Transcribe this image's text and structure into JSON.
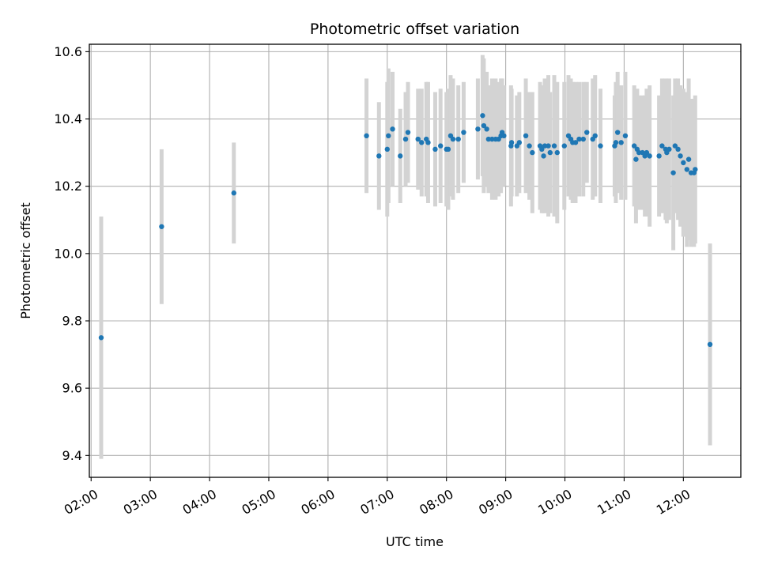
{
  "chart_data": {
    "type": "scatter",
    "title": "Photometric offset variation",
    "xlabel": "UTC time",
    "ylabel": "Photometric offset",
    "x_unit": "hours UTC",
    "xlim": [
      1.97,
      12.97
    ],
    "ylim": [
      9.335,
      10.622
    ],
    "x_ticks": [
      2,
      3,
      4,
      5,
      6,
      7,
      8,
      9,
      10,
      11,
      12
    ],
    "x_tick_labels": [
      "02:00",
      "03:00",
      "04:00",
      "05:00",
      "06:00",
      "07:00",
      "08:00",
      "09:00",
      "10:00",
      "11:00",
      "12:00"
    ],
    "y_ticks": [
      9.4,
      9.6,
      9.8,
      10.0,
      10.2,
      10.4,
      10.6
    ],
    "y_tick_labels": [
      "9.4",
      "9.6",
      "9.8",
      "10.0",
      "10.2",
      "10.4",
      "10.6"
    ],
    "grid": true,
    "point_color": "#1f77b4",
    "errorbar_color": "#d3d3d3",
    "series": [
      {
        "x": [
          2.17,
          3.19,
          4.41,
          6.65,
          6.86,
          7.0,
          7.02,
          7.09,
          7.22,
          7.31,
          7.35,
          7.52,
          7.58,
          7.66,
          7.69,
          7.81,
          7.9,
          8.0,
          8.03,
          8.07,
          8.11,
          8.2,
          8.29,
          8.53,
          8.61,
          8.63,
          8.68,
          8.71,
          8.77,
          8.83,
          8.88,
          8.92,
          8.94,
          8.97,
          9.09,
          9.1,
          9.19,
          9.23,
          9.34,
          9.4,
          9.45,
          9.58,
          9.61,
          9.64,
          9.66,
          9.72,
          9.75,
          9.82,
          9.87,
          9.99,
          10.06,
          10.1,
          10.13,
          10.18,
          10.24,
          10.31,
          10.37,
          10.47,
          10.51,
          10.6,
          10.84,
          10.86,
          10.89,
          10.95,
          11.02,
          11.17,
          11.2,
          11.22,
          11.25,
          11.31,
          11.35,
          11.38,
          11.43,
          11.59,
          11.64,
          11.7,
          11.72,
          11.76,
          11.83,
          11.86,
          11.91,
          11.95,
          12.0,
          12.06,
          12.09,
          12.13,
          12.18,
          12.2,
          12.45
        ],
        "y": [
          9.75,
          10.08,
          10.18,
          10.35,
          10.29,
          10.31,
          10.35,
          10.37,
          10.29,
          10.34,
          10.36,
          10.34,
          10.33,
          10.34,
          10.33,
          10.31,
          10.32,
          10.31,
          10.31,
          10.35,
          10.34,
          10.34,
          10.36,
          10.37,
          10.41,
          10.38,
          10.37,
          10.34,
          10.34,
          10.34,
          10.34,
          10.35,
          10.36,
          10.35,
          10.32,
          10.33,
          10.32,
          10.33,
          10.35,
          10.32,
          10.3,
          10.32,
          10.31,
          10.29,
          10.32,
          10.32,
          10.3,
          10.32,
          10.3,
          10.32,
          10.35,
          10.34,
          10.33,
          10.33,
          10.34,
          10.34,
          10.36,
          10.34,
          10.35,
          10.32,
          10.32,
          10.33,
          10.36,
          10.33,
          10.35,
          10.32,
          10.28,
          10.31,
          10.3,
          10.3,
          10.29,
          10.3,
          10.29,
          10.29,
          10.32,
          10.31,
          10.3,
          10.31,
          10.24,
          10.32,
          10.31,
          10.29,
          10.27,
          10.25,
          10.28,
          10.24,
          10.24,
          10.25,
          9.73
        ],
        "err": [
          0.36,
          0.23,
          0.15,
          0.17,
          0.16,
          0.2,
          0.2,
          0.17,
          0.14,
          0.14,
          0.15,
          0.15,
          0.16,
          0.17,
          0.18,
          0.17,
          0.17,
          0.17,
          0.18,
          0.18,
          0.18,
          0.16,
          0.15,
          0.15,
          0.18,
          0.2,
          0.17,
          0.16,
          0.18,
          0.18,
          0.17,
          0.17,
          0.16,
          0.15,
          0.18,
          0.16,
          0.15,
          0.15,
          0.17,
          0.16,
          0.18,
          0.19,
          0.19,
          0.17,
          0.2,
          0.21,
          0.18,
          0.21,
          0.21,
          0.19,
          0.18,
          0.18,
          0.18,
          0.18,
          0.17,
          0.17,
          0.15,
          0.18,
          0.18,
          0.17,
          0.15,
          0.18,
          0.18,
          0.17,
          0.19,
          0.18,
          0.19,
          0.18,
          0.17,
          0.17,
          0.18,
          0.19,
          0.21,
          0.18,
          0.2,
          0.21,
          0.21,
          0.21,
          0.23,
          0.2,
          0.21,
          0.21,
          0.22,
          0.23,
          0.24,
          0.22,
          0.22,
          0.22,
          0.3
        ]
      }
    ]
  }
}
